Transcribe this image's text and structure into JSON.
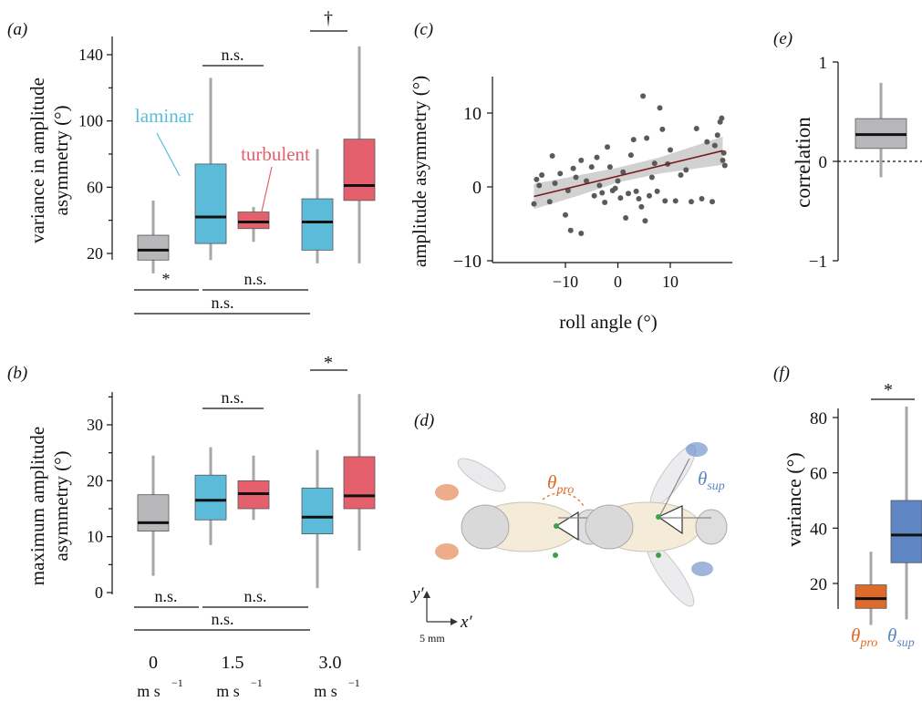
{
  "colors": {
    "zero": "#b7b7b9",
    "laminar": "#5bbbd9",
    "turbulent": "#e4606d",
    "correlation": "#b7b7b9",
    "theta_pro": "#de6a2b",
    "theta_sup": "#5e86c4",
    "scatter_points": "#5a5a5a",
    "regression_line": "#7a1a1a",
    "ci_band": "#c9c9c9",
    "whisker": "#a7a7a7"
  },
  "panel_a": {
    "label": "(a)",
    "ylabel_line1": "variance in amplitude",
    "ylabel_line2": "asymmetry (°)",
    "laminar_label": "laminar",
    "turbulent_label": "turbulent",
    "sig_top": [
      "n.s.",
      "†"
    ],
    "sig_bottom": [
      "*",
      "n.s.",
      "n.s."
    ]
  },
  "panel_b": {
    "label": "(b)",
    "ylabel_line1": "maximum amplitude",
    "ylabel_line2": "asymmetry (°)",
    "sig_top": [
      "n.s.",
      "*"
    ],
    "sig_bottom": [
      "n.s.",
      "n.s.",
      "n.s."
    ],
    "xticks": [
      {
        "value": "0",
        "unit": "m s",
        "exp": "−1"
      },
      {
        "value": "1.5",
        "unit": "m s",
        "exp": "−1"
      },
      {
        "value": "3.0",
        "unit": "m s",
        "exp": "−1"
      }
    ]
  },
  "panel_c": {
    "label": "(c)",
    "xlabel": "roll angle (°)",
    "ylabel": "amplitude asymmetry (°)"
  },
  "panel_d": {
    "label": "(d)",
    "theta_pro": {
      "symbol": "θ",
      "sub": "pro"
    },
    "theta_sup": {
      "symbol": "θ",
      "sub": "sup"
    },
    "axis_y": "y′",
    "axis_x": "x′",
    "scalebar": "5 mm"
  },
  "panel_e": {
    "label": "(e)",
    "ylabel": "correlation"
  },
  "panel_f": {
    "label": "(f)",
    "ylabel": "variance (°)",
    "sig": "*",
    "cat_pro": {
      "symbol": "θ",
      "sub": "pro"
    },
    "cat_sup": {
      "symbol": "θ",
      "sub": "sup"
    }
  },
  "chart_data": [
    {
      "panel": "a",
      "type": "box",
      "ylabel": "variance in amplitude asymmetry (°)",
      "ylim": [
        12,
        150
      ],
      "yticks": [
        20,
        60,
        100,
        140
      ],
      "categories": [
        "0 m s−1",
        "1.5 m s−1",
        "3.0 m s−1"
      ],
      "series": [
        {
          "name": "laminar",
          "boxes": [
            {
              "category": "0 m s−1",
              "condition": "zero",
              "min": 8,
              "q1": 16,
              "median": 22,
              "q3": 31,
              "max": 52
            },
            {
              "category": "1.5 m s−1",
              "condition": "laminar",
              "min": 16,
              "q1": 26,
              "median": 42,
              "q3": 74,
              "max": 126
            },
            {
              "category": "3.0 m s−1",
              "condition": "laminar",
              "min": 14,
              "q1": 22,
              "median": 39,
              "q3": 53,
              "max": 83
            }
          ]
        },
        {
          "name": "turbulent",
          "boxes": [
            {
              "category": "1.5 m s−1",
              "condition": "turbulent",
              "min": 27,
              "q1": 35,
              "median": 39,
              "q3": 45,
              "max": 48
            },
            {
              "category": "3.0 m s−1",
              "condition": "turbulent",
              "min": 14,
              "q1": 52,
              "median": 61,
              "q3": 89,
              "max": 145
            }
          ]
        }
      ],
      "significance": [
        {
          "between": [
            "1.5 laminar",
            "1.5 turbulent"
          ],
          "label": "n.s."
        },
        {
          "between": [
            "3.0 laminar",
            "3.0 turbulent"
          ],
          "label": "†"
        },
        {
          "between": [
            "0",
            "1.5 laminar"
          ],
          "label": "*"
        },
        {
          "between": [
            "1.5 laminar",
            "3.0 laminar"
          ],
          "label": "n.s."
        },
        {
          "between": [
            "0",
            "3.0 laminar"
          ],
          "label": "n.s."
        }
      ]
    },
    {
      "panel": "b",
      "type": "box",
      "ylabel": "maximum amplitude asymmetry (°)",
      "ylim": [
        0,
        35
      ],
      "yticks": [
        0,
        10,
        20,
        30
      ],
      "minor_yticks": [
        5,
        15,
        25,
        35
      ],
      "categories": [
        "0 m s−1",
        "1.5 m s−1",
        "3.0 m s−1"
      ],
      "series": [
        {
          "name": "laminar",
          "boxes": [
            {
              "category": "0 m s−1",
              "condition": "zero",
              "min": 3,
              "q1": 11,
              "median": 12.5,
              "q3": 17.5,
              "max": 24.5
            },
            {
              "category": "1.5 m s−1",
              "condition": "laminar",
              "min": 8.5,
              "q1": 13,
              "median": 16.5,
              "q3": 21,
              "max": 26
            },
            {
              "category": "3.0 m s−1",
              "condition": "laminar",
              "min": 0.8,
              "q1": 10.5,
              "median": 13.5,
              "q3": 18.7,
              "max": 25.5
            }
          ]
        },
        {
          "name": "turbulent",
          "boxes": [
            {
              "category": "1.5 m s−1",
              "condition": "turbulent",
              "min": 13,
              "q1": 15,
              "median": 17.7,
              "q3": 20,
              "max": 24.5
            },
            {
              "category": "3.0 m s−1",
              "condition": "turbulent",
              "min": 7.5,
              "q1": 15,
              "median": 17.3,
              "q3": 24.3,
              "max": 35.5
            }
          ]
        }
      ],
      "significance": [
        {
          "between": [
            "1.5 laminar",
            "1.5 turbulent"
          ],
          "label": "n.s."
        },
        {
          "between": [
            "3.0 laminar",
            "3.0 turbulent"
          ],
          "label": "*"
        },
        {
          "between": [
            "0",
            "1.5 laminar"
          ],
          "label": "n.s."
        },
        {
          "between": [
            "1.5 laminar",
            "3.0 laminar"
          ],
          "label": "n.s."
        },
        {
          "between": [
            "0",
            "3.0 laminar"
          ],
          "label": "n.s."
        }
      ]
    },
    {
      "panel": "c",
      "type": "scatter",
      "xlabel": "roll angle (°)",
      "ylabel": "amplitude asymmetry (°)",
      "xlim": [
        -18,
        21
      ],
      "ylim": [
        -10,
        15
      ],
      "xticks": [
        -10,
        0,
        10
      ],
      "yticks": [
        -10,
        0,
        10
      ],
      "regression": {
        "x": [
          -16,
          20
        ],
        "y": [
          -1.3,
          4.9
        ]
      },
      "ci_band": {
        "x": [
          -16,
          -8,
          0,
          8,
          20
        ],
        "lower": [
          -3.0,
          -1.3,
          0.6,
          1.8,
          3.0
        ],
        "upper": [
          0.4,
          1.5,
          2.6,
          4.0,
          6.8
        ]
      },
      "points": [
        [
          -16,
          -2.3
        ],
        [
          -15.5,
          1.0
        ],
        [
          -15,
          0.2
        ],
        [
          -14.5,
          1.6
        ],
        [
          -13,
          -2.0
        ],
        [
          -12.5,
          4.2
        ],
        [
          -12,
          0.5
        ],
        [
          -11,
          1.8
        ],
        [
          -10,
          -3.8
        ],
        [
          -9.5,
          -0.5
        ],
        [
          -9,
          -5.9
        ],
        [
          -8.5,
          2.5
        ],
        [
          -8,
          1.3
        ],
        [
          -7,
          -6.3
        ],
        [
          -7,
          3.6
        ],
        [
          -6,
          0.8
        ],
        [
          -5,
          2.7
        ],
        [
          -4.5,
          -1.2
        ],
        [
          -4,
          4.0
        ],
        [
          -3.5,
          0.2
        ],
        [
          -3,
          -0.8
        ],
        [
          -2.5,
          -2.1
        ],
        [
          -2,
          5.4
        ],
        [
          -1.5,
          2.7
        ],
        [
          -1,
          -0.5
        ],
        [
          -0.5,
          -0.2
        ],
        [
          0,
          0.8
        ],
        [
          0.5,
          -1.5
        ],
        [
          1,
          2.0
        ],
        [
          1.5,
          -4.2
        ],
        [
          2,
          -0.9
        ],
        [
          2.5,
          4.3
        ],
        [
          3,
          6.4
        ],
        [
          3.5,
          -0.6
        ],
        [
          4,
          -1.6
        ],
        [
          4.5,
          -2.7
        ],
        [
          4.8,
          12.3
        ],
        [
          5.2,
          -4.6
        ],
        [
          5.5,
          6.6
        ],
        [
          6,
          -1.2
        ],
        [
          6.5,
          1.3
        ],
        [
          7,
          3.2
        ],
        [
          7.5,
          -0.6
        ],
        [
          8,
          10.7
        ],
        [
          8.5,
          7.8
        ],
        [
          9,
          -1.9
        ],
        [
          9.5,
          3.1
        ],
        [
          10,
          5.0
        ],
        [
          11,
          -1.9
        ],
        [
          12,
          1.6
        ],
        [
          13,
          2.3
        ],
        [
          14,
          -2.0
        ],
        [
          15,
          7.9
        ],
        [
          16,
          -1.6
        ],
        [
          17,
          6.1
        ],
        [
          18,
          -2.0
        ],
        [
          18.5,
          5.6
        ],
        [
          19,
          7.0
        ],
        [
          19.5,
          8.8
        ],
        [
          19.8,
          9.3
        ],
        [
          20,
          3.6
        ],
        [
          20.2,
          4.6
        ],
        [
          20.4,
          2.9
        ]
      ]
    },
    {
      "panel": "e",
      "type": "box",
      "ylabel": "correlation",
      "ylim": [
        -1,
        1
      ],
      "yticks": [
        -1,
        0,
        1
      ],
      "reference_line": 0,
      "boxes": [
        {
          "min": -0.16,
          "q1": 0.13,
          "median": 0.27,
          "q3": 0.43,
          "max": 0.79
        }
      ]
    },
    {
      "panel": "f",
      "type": "box",
      "ylabel": "variance (°)",
      "ylim": [
        5,
        87
      ],
      "yticks": [
        20,
        40,
        60,
        80
      ],
      "categories": [
        "θpro",
        "θsup"
      ],
      "boxes": [
        {
          "category": "θpro",
          "min": 5,
          "q1": 11,
          "median": 14.5,
          "q3": 19.5,
          "max": 31.5
        },
        {
          "category": "θsup",
          "min": 7,
          "q1": 27.5,
          "median": 37.5,
          "q3": 50,
          "max": 84
        }
      ],
      "significance": [
        {
          "between": [
            "θpro",
            "θsup"
          ],
          "label": "*"
        }
      ]
    }
  ]
}
